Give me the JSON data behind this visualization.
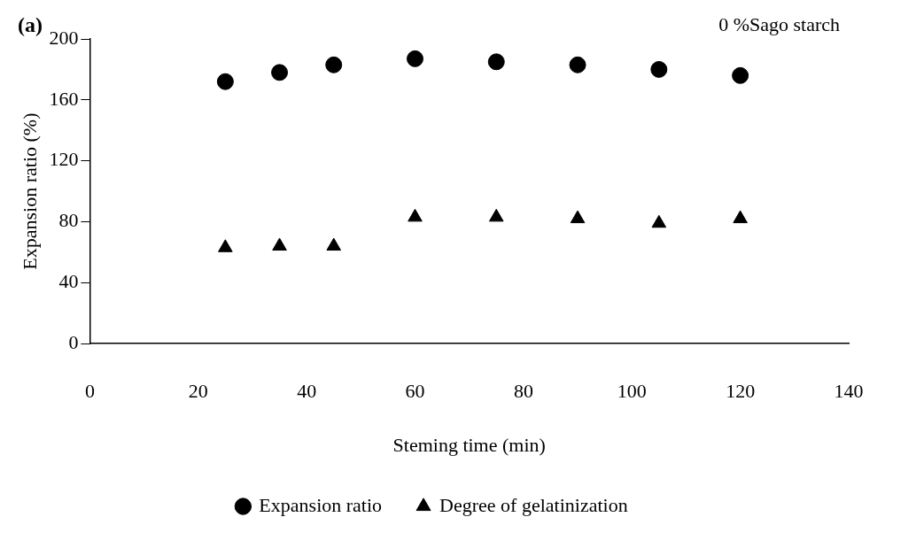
{
  "chart_data": {
    "type": "scatter",
    "title": "(a)",
    "xlabel": "Steming time (min)",
    "ylabel": "Expansion ratio (%)",
    "annotations": [
      "0 %Sago starch"
    ],
    "x": [
      25,
      35,
      45,
      60,
      75,
      90,
      105,
      120
    ],
    "series": [
      {
        "name": "Expansion ratio",
        "color": "#000000",
        "marker": "circle",
        "values": [
          172,
          178,
          183,
          187,
          185,
          183,
          180,
          176
        ]
      },
      {
        "name": "Degree of gelatinization",
        "color": "#000000",
        "marker": "triangle",
        "values": [
          63,
          64,
          64,
          83,
          83,
          82,
          79,
          82
        ]
      }
    ],
    "xlim": [
      0,
      140
    ],
    "xticks": [
      0,
      20,
      40,
      60,
      80,
      100,
      120,
      140
    ],
    "ylim": [
      0,
      200
    ],
    "yticks": [
      0,
      40,
      80,
      120,
      160,
      200
    ],
    "grid": false,
    "legend": "bottom"
  }
}
